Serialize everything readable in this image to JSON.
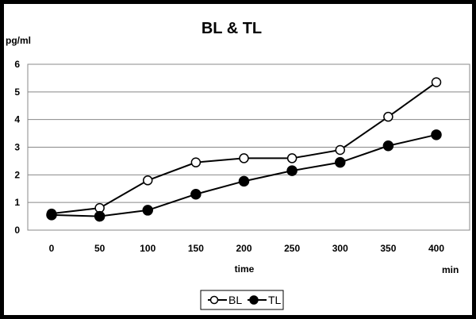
{
  "chart_data": {
    "type": "line",
    "title": "BL & TL",
    "ylabel": "pg/ml",
    "xlabel": "time",
    "xunit": "min",
    "x": [
      0,
      50,
      100,
      150,
      200,
      250,
      300,
      350,
      400
    ],
    "ylim": [
      0,
      6
    ],
    "yticks": [
      0,
      1,
      2,
      3,
      4,
      5,
      6
    ],
    "grid": true,
    "legend_position": "bottom-center",
    "series": [
      {
        "name": "BL",
        "marker": "open-circle",
        "color": "#000000",
        "values": [
          0.6,
          0.8,
          1.8,
          2.45,
          2.6,
          2.6,
          2.9,
          4.1,
          5.35
        ]
      },
      {
        "name": "TL",
        "marker": "filled-circle",
        "color": "#000000",
        "values": [
          0.55,
          0.5,
          0.72,
          1.3,
          1.77,
          2.15,
          2.45,
          3.05,
          3.45
        ]
      }
    ]
  }
}
